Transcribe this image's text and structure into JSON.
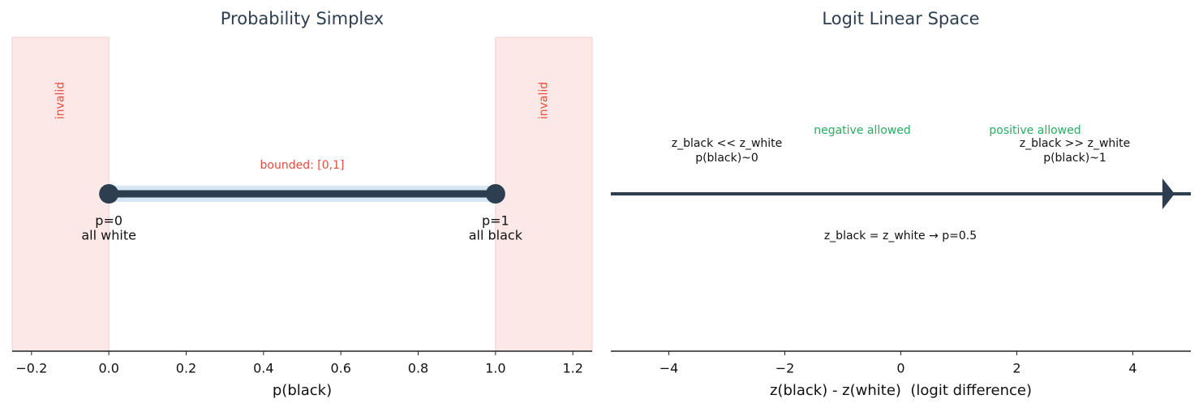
{
  "chart_data": [
    {
      "type": "interval",
      "title": "Probability Simplex",
      "xlabel": "p(black)",
      "xlim": [
        -0.25,
        1.25
      ],
      "xticks": [
        {
          "value": -0.2,
          "label": "−0.2"
        },
        {
          "value": 0,
          "label": "0.0"
        },
        0.2,
        0.4,
        0.6,
        0.8,
        {
          "value": 1,
          "label": "1.0"
        },
        1.2
      ],
      "x": [
        0,
        1
      ],
      "point_labels": [
        [
          "p=0",
          "all white"
        ],
        [
          "p=1",
          "all black"
        ]
      ],
      "color": "#2c3e50",
      "band_color": "#d6e6f5",
      "annotation": "bounded: [0,1]",
      "annotation_color": "#e74c3c",
      "invalid_regions": [
        [
          -0.25,
          0
        ],
        [
          1,
          1.25
        ]
      ],
      "invalid_label": "invalid",
      "invalid_color": "#fde8e8"
    },
    {
      "type": "arrow",
      "title": "Logit Linear Space",
      "xlabel": "z(black) - z(white)  (logit difference)",
      "xlim": [
        -5,
        5
      ],
      "xticks": [
        {
          "value": -4,
          "label": "−4"
        },
        {
          "value": -2,
          "label": "−2"
        },
        0,
        2,
        4
      ],
      "color": "#2c3e50",
      "annotations": [
        {
          "lines": [
            "negative allowed"
          ],
          "color": "#27ae60"
        },
        {
          "lines": [
            "positive allowed"
          ],
          "color": "#27ae60"
        },
        {
          "lines": [
            "z_black << z_white",
            "p(black)~0"
          ],
          "color": "#111111"
        },
        {
          "lines": [
            "z_black >> z_white",
            "p(black)~1"
          ],
          "color": "#111111"
        },
        {
          "lines": [
            "z_black = z_white → p=0.5"
          ],
          "color": "#111111"
        }
      ]
    }
  ]
}
